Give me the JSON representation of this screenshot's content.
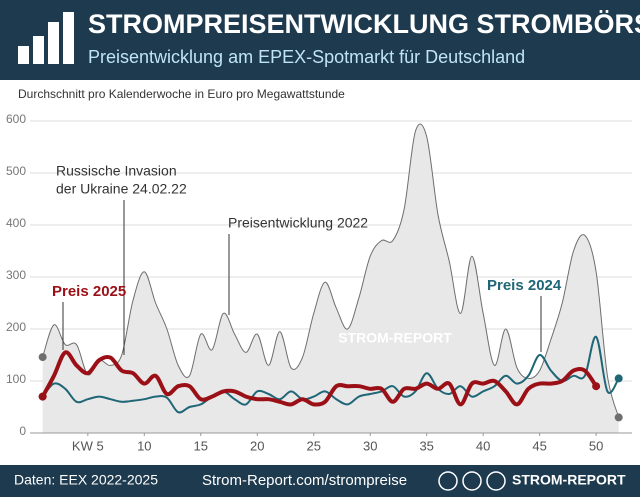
{
  "header": {
    "title": "STROMPREISENTWICKLUNG STROMBÖRSE",
    "subtitle": "Preisentwicklung am EPEX-Spotmarkt für Deutschland"
  },
  "footer": {
    "source": "Daten: EEX 2022-2025",
    "url": "Strom-Report.com/strompreise",
    "brand": "STROM-REPORT"
  },
  "chart_data": {
    "type": "line",
    "y_label": "Durchschnitt pro Kalenderwoche in Euro pro Megawattstunde",
    "watermark": "STROM-REPORT",
    "annotations": [
      "Russische Invasion",
      "der Ukraine 24.02.22"
    ],
    "x": [
      1,
      2,
      3,
      4,
      5,
      6,
      7,
      8,
      9,
      10,
      11,
      12,
      13,
      14,
      15,
      16,
      17,
      18,
      19,
      20,
      21,
      22,
      23,
      24,
      25,
      26,
      27,
      28,
      29,
      30,
      31,
      32,
      33,
      34,
      35,
      36,
      37,
      38,
      39,
      40,
      41,
      42,
      43,
      44,
      45,
      46,
      47,
      48,
      49,
      50,
      51,
      52
    ],
    "xlim": [
      0.5,
      53
    ],
    "xticks": [
      {
        "value": 5,
        "label": "KW 5"
      },
      10,
      15,
      20,
      25,
      30,
      35,
      40,
      45,
      50
    ],
    "ylim": [
      0,
      600
    ],
    "yticks": [
      0,
      100,
      200,
      300,
      400,
      500,
      600
    ],
    "grid": true,
    "series": [
      {
        "name": "Preisentwicklung 2022",
        "color": "#6e6e6e",
        "fill": "#e8e8e8",
        "values": [
          146,
          208,
          170,
          170,
          112,
          140,
          130,
          150,
          255,
          310,
          250,
          200,
          130,
          110,
          190,
          160,
          230,
          190,
          155,
          190,
          130,
          195,
          125,
          145,
          230,
          290,
          240,
          200,
          260,
          340,
          370,
          370,
          430,
          580,
          570,
          420,
          330,
          230,
          340,
          230,
          130,
          200,
          125,
          105,
          120,
          180,
          250,
          350,
          380,
          310,
          110,
          30
        ]
      },
      {
        "name": "Preis 2024",
        "color": "#1f6676",
        "values": [
          70,
          95,
          85,
          60,
          65,
          70,
          65,
          60,
          62,
          65,
          70,
          68,
          40,
          50,
          55,
          70,
          80,
          65,
          55,
          80,
          75,
          65,
          80,
          65,
          70,
          80,
          65,
          55,
          70,
          75,
          80,
          90,
          70,
          80,
          115,
          85,
          75,
          90,
          70,
          80,
          90,
          110,
          95,
          110,
          150,
          120,
          100,
          110,
          110,
          185,
          80,
          105
        ]
      },
      {
        "name": "Preis 2025",
        "color": "#9b1016",
        "values": [
          70,
          110,
          155,
          130,
          115,
          140,
          145,
          120,
          115,
          95,
          110,
          75,
          90,
          90,
          65,
          70,
          80,
          80,
          70,
          65,
          65,
          60,
          55,
          65,
          55,
          60,
          90,
          90,
          90,
          85,
          85,
          60,
          85,
          85,
          95,
          85,
          95,
          55,
          95,
          95,
          100,
          80,
          55,
          85,
          95,
          95,
          100,
          120,
          120,
          90,
          null,
          null
        ]
      }
    ]
  }
}
